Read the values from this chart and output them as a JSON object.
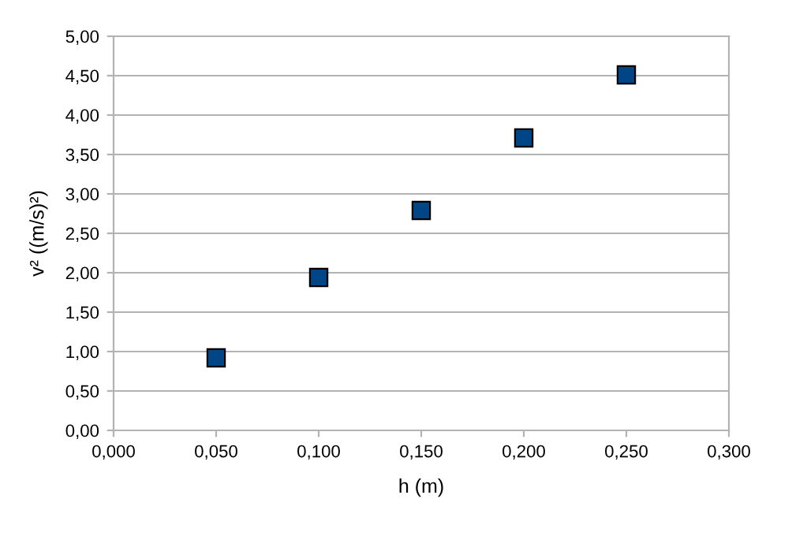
{
  "chart_data": {
    "type": "scatter",
    "xlabel": "h (m)",
    "ylabel": "v² ((m/s)²)",
    "x": [
      0.05,
      0.1,
      0.15,
      0.2,
      0.25
    ],
    "series": [
      {
        "color": "#004586",
        "values": [
          0.92,
          1.94,
          2.79,
          3.71,
          4.51
        ]
      }
    ],
    "xlim": [
      0,
      0.3
    ],
    "ylim": [
      0,
      5
    ],
    "xticks": [
      {
        "value": 0,
        "label": "0,000"
      },
      {
        "value": 0.05,
        "label": "0,050"
      },
      {
        "value": 0.1,
        "label": "0,100"
      },
      {
        "value": 0.15,
        "label": "0,150"
      },
      {
        "value": 0.2,
        "label": "0,200"
      },
      {
        "value": 0.25,
        "label": "0,250"
      },
      {
        "value": 0.3,
        "label": "0,300"
      }
    ],
    "yticks": [
      {
        "value": 0,
        "label": "0,00"
      },
      {
        "value": 0.5,
        "label": "0,50"
      },
      {
        "value": 1,
        "label": "1,00"
      },
      {
        "value": 1.5,
        "label": "1,50"
      },
      {
        "value": 2,
        "label": "2,00"
      },
      {
        "value": 2.5,
        "label": "2,50"
      },
      {
        "value": 3,
        "label": "3,00"
      },
      {
        "value": 3.5,
        "label": "3,50"
      },
      {
        "value": 4,
        "label": "4,00"
      },
      {
        "value": 4.5,
        "label": "4,50"
      },
      {
        "value": 5,
        "label": "5,00"
      }
    ],
    "grid": "y",
    "marker": "square",
    "legend": false
  }
}
